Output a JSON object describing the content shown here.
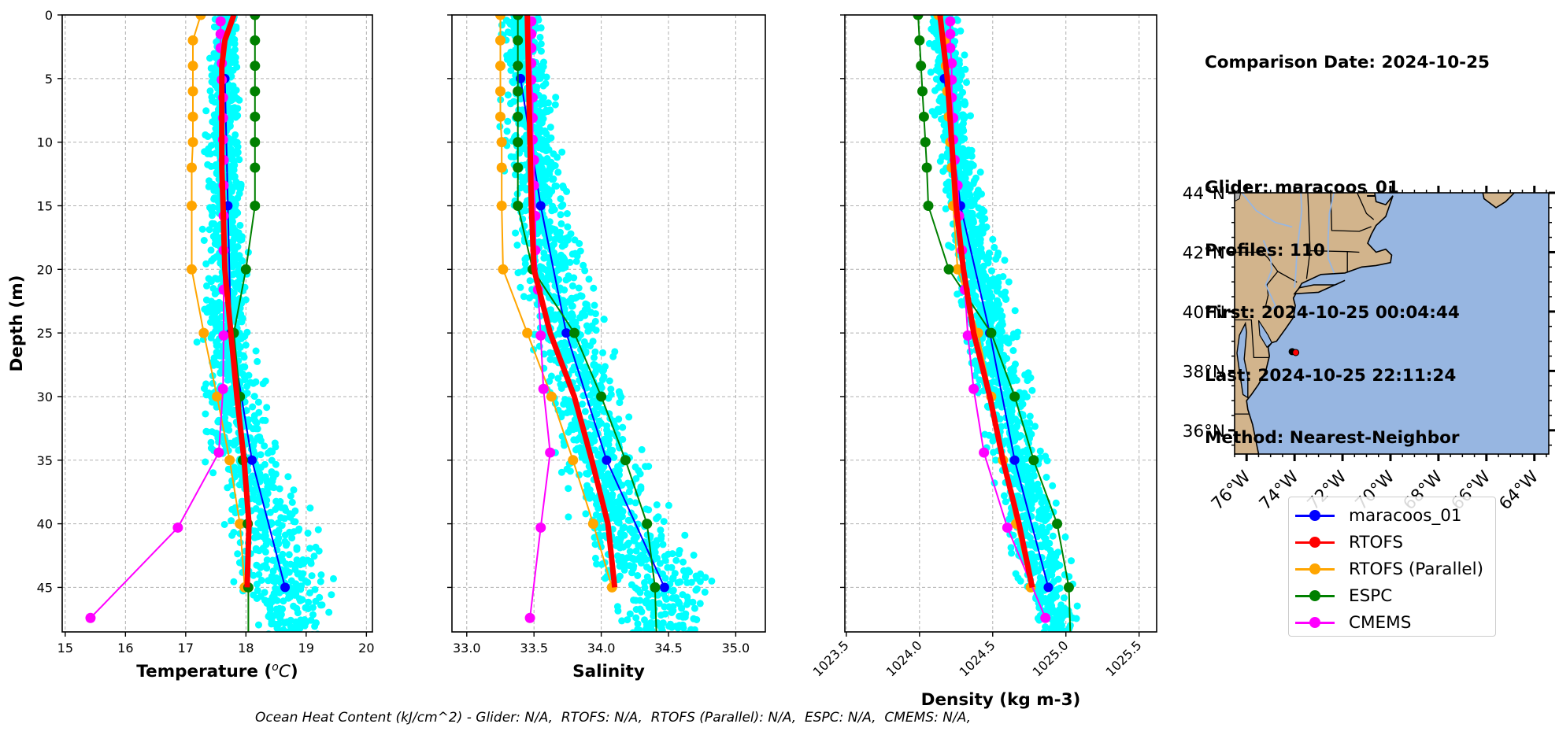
{
  "info": {
    "comparison_date": "Comparison Date: 2024-10-25",
    "glider": "Glider: maracoos_01",
    "profiles": "Profiles: 110",
    "first": "First: 2024-10-25 00:04:44",
    "last": "Last: 2024-10-25 22:11:24",
    "method": "Method: Nearest-Neighbor"
  },
  "footer": "Ocean Heat Content (kJ/cm^2) - Glider: N/A,  RTOFS: N/A,  RTOFS (Parallel): N/A,  ESPC: N/A,  CMEMS: N/A,",
  "colors": {
    "glider_scatter": "#00ffff",
    "maracoos_01": "#0000ff",
    "RTOFS": "#ff0000",
    "RTOFS (Parallel)": "#ffa500",
    "ESPC": "#008000",
    "CMEMS": "#ff00ff",
    "land": "#d2b48c",
    "ocean": "#97b6e1",
    "lakes_gray": "#b0b0b0",
    "river": "#97b6e1",
    "grid": "#b0b0b0"
  },
  "legend": [
    {
      "label": "maracoos_01",
      "series": "maracoos_01"
    },
    {
      "label": "RTOFS",
      "series": "RTOFS"
    },
    {
      "label": "RTOFS (Parallel)",
      "series": "RTOFS (Parallel)"
    },
    {
      "label": "ESPC",
      "series": "ESPC"
    },
    {
      "label": "CMEMS",
      "series": "CMEMS"
    }
  ],
  "chart_data": [
    {
      "type": "line",
      "id": "temperature",
      "title": "",
      "xlabel": "Temperature (°C)",
      "ylabel": "Depth (m)",
      "xlim": [
        14.95,
        20.1
      ],
      "ylim": [
        48.5,
        0
      ],
      "xticks": [
        "15",
        "16",
        "17",
        "18",
        "19",
        "20"
      ],
      "xtick_values": [
        15,
        16,
        17,
        18,
        19,
        20
      ],
      "yticks": [
        "0",
        "5",
        "10",
        "15",
        "20",
        "25",
        "30",
        "35",
        "40",
        "45"
      ],
      "ytick_values": [
        0,
        5,
        10,
        15,
        20,
        25,
        30,
        35,
        40,
        45
      ],
      "grid": true,
      "scatter_envelope": {
        "label": "glider profiles (all points)",
        "depth": [
          0,
          5,
          10,
          15,
          20,
          25,
          30,
          35,
          40,
          45,
          48.5
        ],
        "min": [
          17.45,
          17.3,
          17.3,
          17.3,
          17.3,
          17.2,
          17.2,
          17.3,
          17.5,
          17.8,
          18.0
        ],
        "max": [
          17.9,
          17.95,
          17.95,
          18.0,
          18.1,
          18.2,
          18.4,
          18.7,
          19.2,
          19.6,
          19.6
        ],
        "n": 1400
      },
      "series": [
        {
          "name": "maracoos_01",
          "depth": [
            5,
            15,
            25,
            35,
            45
          ],
          "values": [
            17.65,
            17.7,
            17.75,
            18.1,
            18.65
          ],
          "line_width": 2,
          "marker_size": 6
        },
        {
          "name": "RTOFS",
          "depth": [
            0,
            2,
            4,
            6,
            8,
            10,
            12,
            15,
            20,
            25,
            30,
            35,
            40,
            45
          ],
          "values": [
            17.8,
            17.65,
            17.6,
            17.6,
            17.6,
            17.6,
            17.6,
            17.62,
            17.65,
            17.75,
            17.85,
            17.97,
            18.05,
            18.02
          ],
          "line_width": 7,
          "marker_size": 0
        },
        {
          "name": "RTOFS (Parallel)",
          "depth": [
            0,
            2,
            4,
            6,
            8,
            10,
            12,
            15,
            20,
            25,
            30,
            35,
            40,
            45
          ],
          "values": [
            17.25,
            17.12,
            17.12,
            17.12,
            17.12,
            17.12,
            17.1,
            17.1,
            17.1,
            17.3,
            17.52,
            17.73,
            17.9,
            17.98
          ],
          "line_width": 2,
          "marker_size": 6.5
        },
        {
          "name": "ESPC",
          "depth": [
            0,
            2,
            4,
            6,
            8,
            10,
            12,
            15,
            20,
            25,
            30,
            35,
            40,
            45,
            48.5
          ],
          "values": [
            18.15,
            18.15,
            18.15,
            18.15,
            18.15,
            18.15,
            18.15,
            18.15,
            18.0,
            17.8,
            17.9,
            17.95,
            18.03,
            18.04,
            18.04
          ],
          "line_width": 2,
          "marker_size": 6.5,
          "marker_count": 14
        },
        {
          "name": "CMEMS",
          "depth": [
            0.5,
            1.5,
            2.6,
            3.8,
            5.1,
            6.5,
            8.1,
            9.8,
            11.4,
            13.4,
            15.8,
            18.5,
            21.6,
            25.2,
            29.4,
            34.4,
            40.3,
            47.4
          ],
          "values": [
            17.58,
            17.58,
            17.58,
            17.6,
            17.6,
            17.62,
            17.62,
            17.62,
            17.63,
            17.63,
            17.63,
            17.63,
            17.63,
            17.63,
            17.62,
            17.55,
            16.87,
            15.42
          ],
          "line_width": 2,
          "marker_size": 6.5
        }
      ]
    },
    {
      "type": "line",
      "id": "salinity",
      "title": "",
      "xlabel": "Salinity",
      "ylabel": "",
      "xlim": [
        32.89,
        35.22
      ],
      "ylim": [
        48.5,
        0
      ],
      "xticks": [
        "33.0",
        "33.5",
        "34.0",
        "34.5",
        "35.0"
      ],
      "xtick_values": [
        33.0,
        33.5,
        34.0,
        34.5,
        35.0
      ],
      "ytick_values": [
        0,
        5,
        10,
        15,
        20,
        25,
        30,
        35,
        40,
        45
      ],
      "grid": true,
      "scatter_envelope": {
        "label": "glider profiles (all points)",
        "depth": [
          0,
          5,
          10,
          15,
          20,
          25,
          30,
          35,
          40,
          45,
          48.5
        ],
        "min": [
          33.25,
          33.25,
          33.25,
          33.3,
          33.35,
          33.45,
          33.55,
          33.65,
          33.75,
          33.9,
          34.1
        ],
        "max": [
          33.55,
          33.65,
          33.72,
          33.8,
          33.95,
          34.05,
          34.2,
          34.35,
          34.55,
          34.9,
          34.95
        ],
        "n": 1400
      },
      "series": [
        {
          "name": "maracoos_01",
          "depth": [
            5,
            15,
            25,
            35,
            45
          ],
          "values": [
            33.4,
            33.55,
            33.74,
            34.04,
            34.47
          ],
          "line_width": 2,
          "marker_size": 6
        },
        {
          "name": "RTOFS",
          "depth": [
            0,
            5,
            10,
            15,
            20,
            25,
            30,
            35,
            40,
            45
          ],
          "values": [
            33.45,
            33.46,
            33.47,
            33.48,
            33.5,
            33.62,
            33.8,
            33.93,
            34.05,
            34.1
          ],
          "line_width": 7,
          "marker_size": 0
        },
        {
          "name": "RTOFS (Parallel)",
          "depth": [
            0,
            2,
            4,
            6,
            8,
            10,
            12,
            15,
            20,
            25,
            30,
            35,
            40,
            45
          ],
          "values": [
            33.25,
            33.25,
            33.25,
            33.25,
            33.25,
            33.26,
            33.26,
            33.26,
            33.27,
            33.45,
            33.63,
            33.79,
            33.94,
            34.08
          ],
          "line_width": 2,
          "marker_size": 6.5
        },
        {
          "name": "ESPC",
          "depth": [
            0,
            2,
            4,
            6,
            8,
            10,
            12,
            15,
            20,
            25,
            30,
            35,
            40,
            45,
            48.5
          ],
          "values": [
            33.38,
            33.38,
            33.38,
            33.38,
            33.38,
            33.38,
            33.38,
            33.38,
            33.49,
            33.8,
            34.0,
            34.18,
            34.34,
            34.4,
            34.41
          ],
          "line_width": 2,
          "marker_size": 6.5,
          "marker_count": 14
        },
        {
          "name": "CMEMS",
          "depth": [
            0.5,
            1.5,
            2.6,
            3.8,
            5.1,
            6.5,
            8.1,
            9.8,
            11.4,
            13.4,
            15.8,
            18.5,
            21.6,
            25.2,
            29.4,
            34.4,
            40.3,
            47.4
          ],
          "values": [
            33.48,
            33.48,
            33.48,
            33.48,
            33.48,
            33.49,
            33.49,
            33.49,
            33.5,
            33.5,
            33.51,
            33.51,
            33.53,
            33.55,
            33.57,
            33.62,
            33.55,
            33.47
          ],
          "line_width": 2,
          "marker_size": 6.5
        }
      ]
    },
    {
      "type": "line",
      "id": "density",
      "title": "",
      "xlabel": "Density (kg m-3)",
      "ylabel": "",
      "xlim": [
        1023.49,
        1025.62
      ],
      "ylim": [
        48.5,
        0
      ],
      "xticks": [
        "1023.5",
        "1024.0",
        "1024.5",
        "1025.0",
        "1025.5"
      ],
      "xtick_values": [
        1023.5,
        1024.0,
        1024.5,
        1025.0,
        1025.5
      ],
      "ytick_values": [
        0,
        5,
        10,
        15,
        20,
        25,
        30,
        35,
        40,
        45
      ],
      "grid": true,
      "scatter_envelope": {
        "label": "glider profiles (all points)",
        "depth": [
          0,
          5,
          10,
          15,
          20,
          25,
          30,
          35,
          40,
          45,
          48.5
        ],
        "min": [
          1024.04,
          1024.06,
          1024.12,
          1024.15,
          1024.22,
          1024.3,
          1024.38,
          1024.45,
          1024.55,
          1024.65,
          1024.8
        ],
        "max": [
          1024.27,
          1024.33,
          1024.38,
          1024.45,
          1024.6,
          1024.7,
          1024.8,
          1024.9,
          1025.0,
          1025.08,
          1025.1
        ],
        "n": 1400
      },
      "series": [
        {
          "name": "maracoos_01",
          "depth": [
            5,
            15,
            25,
            35,
            45
          ],
          "values": [
            1024.17,
            1024.28,
            1024.48,
            1024.65,
            1024.88
          ],
          "line_width": 2,
          "marker_size": 6
        },
        {
          "name": "RTOFS",
          "depth": [
            0,
            5,
            10,
            15,
            20,
            25,
            30,
            35,
            40,
            45
          ],
          "values": [
            1024.14,
            1024.19,
            1024.22,
            1024.25,
            1024.3,
            1024.37,
            1024.48,
            1024.57,
            1024.68,
            1024.77
          ],
          "line_width": 7,
          "marker_size": 0
        },
        {
          "name": "RTOFS (Parallel)",
          "depth": [
            0,
            2,
            4,
            6,
            8,
            10,
            12,
            15,
            20,
            25,
            30,
            35,
            40,
            45
          ],
          "values": [
            1024.13,
            1024.18,
            1024.18,
            1024.19,
            1024.2,
            1024.21,
            1024.22,
            1024.23,
            1024.26,
            1024.4,
            1024.49,
            1024.57,
            1024.66,
            1024.76
          ],
          "line_width": 2,
          "marker_size": 6.5
        },
        {
          "name": "ESPC",
          "depth": [
            0,
            2,
            4,
            6,
            8,
            10,
            12,
            15,
            20,
            25,
            30,
            35,
            40,
            45,
            48.5
          ],
          "values": [
            1023.99,
            1024.0,
            1024.01,
            1024.02,
            1024.03,
            1024.04,
            1024.05,
            1024.06,
            1024.2,
            1024.49,
            1024.65,
            1024.78,
            1024.94,
            1025.02,
            1025.03
          ],
          "line_width": 2,
          "marker_size": 6.5,
          "marker_count": 14
        },
        {
          "name": "CMEMS",
          "depth": [
            0.5,
            1.5,
            2.6,
            3.8,
            5.1,
            6.5,
            8.1,
            9.8,
            11.4,
            13.4,
            15.8,
            18.5,
            21.6,
            25.2,
            29.4,
            34.4,
            40.3,
            47.4
          ],
          "values": [
            1024.21,
            1024.21,
            1024.21,
            1024.22,
            1024.22,
            1024.22,
            1024.23,
            1024.23,
            1024.24,
            1024.26,
            1024.27,
            1024.29,
            1024.31,
            1024.33,
            1024.37,
            1024.44,
            1024.6,
            1024.86
          ],
          "line_width": 2,
          "marker_size": 6.5
        }
      ]
    },
    {
      "type": "map",
      "id": "location-map",
      "xlim_lon": [
        -76.5,
        -63.4
      ],
      "ylim_lat": [
        35.2,
        44.0
      ],
      "xticks": [
        "76°W",
        "74°W",
        "72°W",
        "70°W",
        "68°W",
        "66°W",
        "64°W"
      ],
      "xtick_values": [
        -76,
        -74,
        -72,
        -70,
        -68,
        -66,
        -64
      ],
      "yticks": [
        "36°N",
        "38°N",
        "40°N",
        "42°N",
        "44°N"
      ],
      "ytick_values": [
        36,
        38,
        40,
        42,
        44
      ],
      "points": [
        {
          "label": "glider track",
          "lon": -74.1,
          "lat": 38.65,
          "color": "#000000"
        },
        {
          "label": "glider latest",
          "lon": -73.95,
          "lat": 38.62,
          "color": "#ff0000"
        }
      ]
    }
  ]
}
